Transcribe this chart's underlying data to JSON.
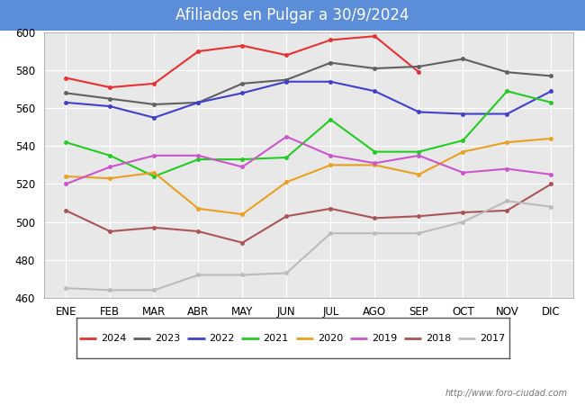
{
  "title": "Afiliados en Pulgar a 30/9/2024",
  "title_bg_color": "#5b8dd9",
  "title_text_color": "white",
  "ylim": [
    460,
    600
  ],
  "yticks": [
    460,
    480,
    500,
    520,
    540,
    560,
    580,
    600
  ],
  "months": [
    "ENE",
    "FEB",
    "MAR",
    "ABR",
    "MAY",
    "JUN",
    "JUL",
    "AGO",
    "SEP",
    "OCT",
    "NOV",
    "DIC"
  ],
  "watermark": "http://www.foro-ciudad.com",
  "series": {
    "2024": {
      "color": "#e83030",
      "data": [
        576,
        571,
        573,
        590,
        593,
        588,
        596,
        598,
        579,
        null,
        null,
        null
      ]
    },
    "2023": {
      "color": "#606060",
      "data": [
        568,
        565,
        562,
        563,
        573,
        575,
        584,
        581,
        582,
        586,
        579,
        577
      ]
    },
    "2022": {
      "color": "#4040cc",
      "data": [
        563,
        561,
        555,
        563,
        568,
        574,
        574,
        569,
        558,
        557,
        557,
        569
      ]
    },
    "2021": {
      "color": "#22cc22",
      "data": [
        542,
        535,
        524,
        533,
        533,
        534,
        554,
        537,
        537,
        543,
        569,
        563
      ]
    },
    "2020": {
      "color": "#e8a020",
      "data": [
        524,
        523,
        526,
        507,
        504,
        521,
        530,
        530,
        525,
        537,
        542,
        544
      ]
    },
    "2019": {
      "color": "#cc55cc",
      "data": [
        520,
        529,
        535,
        535,
        529,
        545,
        535,
        531,
        535,
        526,
        528,
        525
      ]
    },
    "2018": {
      "color": "#aa5555",
      "data": [
        506,
        495,
        497,
        495,
        489,
        503,
        507,
        502,
        503,
        505,
        506,
        520
      ]
    },
    "2017": {
      "color": "#bbbbbb",
      "data": [
        465,
        464,
        464,
        472,
        472,
        473,
        494,
        494,
        494,
        500,
        511,
        508
      ]
    }
  },
  "legend_order": [
    "2024",
    "2023",
    "2022",
    "2021",
    "2020",
    "2019",
    "2018",
    "2017"
  ]
}
